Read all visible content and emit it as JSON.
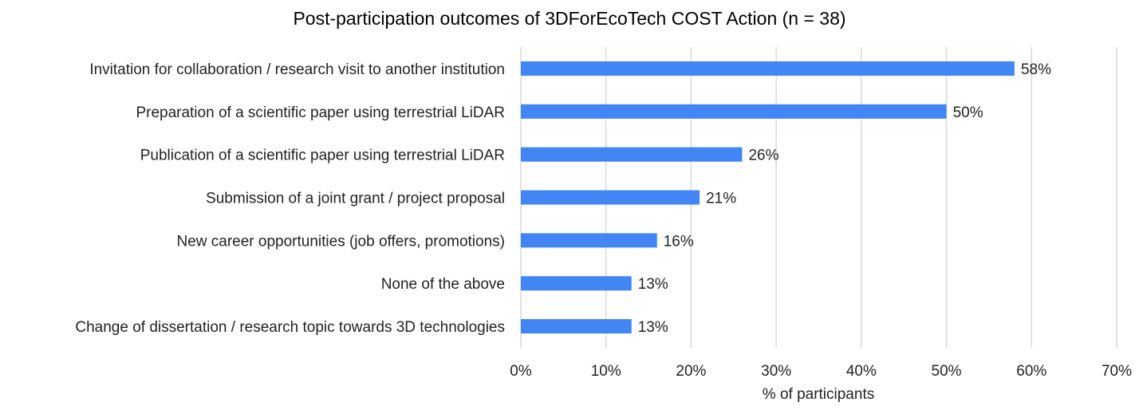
{
  "chart_data": {
    "type": "bar",
    "orientation": "horizontal",
    "title": "Post-participation outcomes of 3DForEcoTech COST Action (n = 38)",
    "xlabel": "% of participants",
    "ylabel": "",
    "categories": [
      "Invitation for collaboration / research visit to another institution",
      "Preparation of a scientific paper using terrestrial LiDAR",
      "Publication of a scientific paper using terrestrial LiDAR",
      "Submission of a joint grant / project proposal",
      "New career opportunities (job offers, promotions)",
      "None of the above",
      "Change of dissertation / research topic towards 3D technologies"
    ],
    "values": [
      58,
      50,
      26,
      21,
      16,
      13,
      13
    ],
    "data_labels": [
      "58%",
      "50%",
      "26%",
      "21%",
      "16%",
      "13%",
      "13%"
    ],
    "xlim": [
      0,
      70
    ],
    "xticks": [
      0,
      10,
      20,
      30,
      40,
      50,
      60,
      70
    ],
    "xtick_labels": [
      "0%",
      "10%",
      "20%",
      "30%",
      "40%",
      "50%",
      "60%",
      "70%"
    ],
    "grid": "vertical",
    "legend": "none",
    "bar_color": "#4285f4"
  }
}
